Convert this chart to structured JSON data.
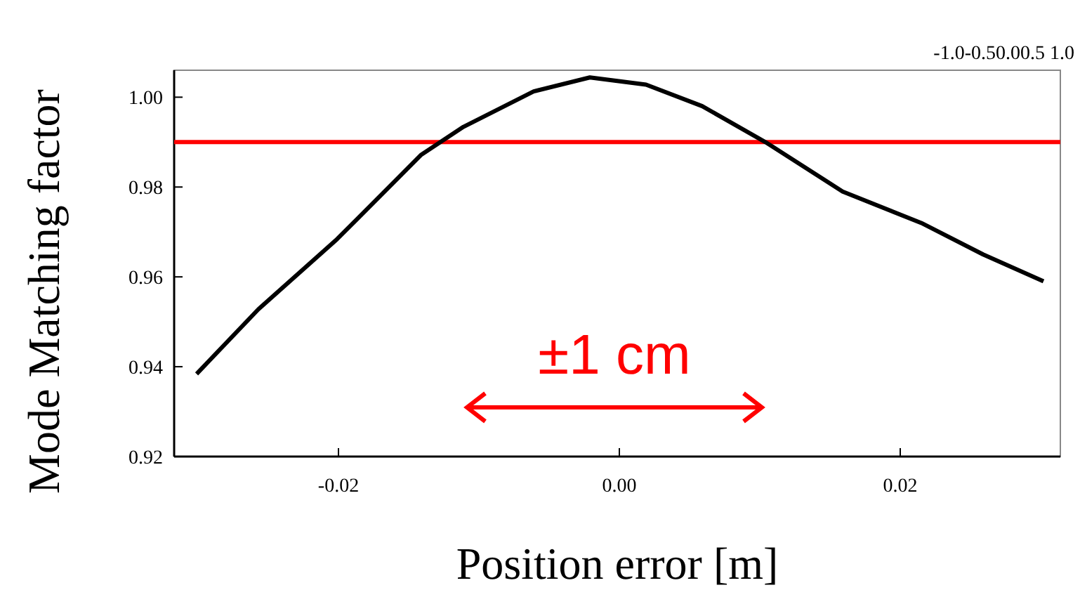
{
  "chart_data": {
    "type": "line",
    "xlabel": "Position error [m]",
    "ylabel": "Mode Matching factor",
    "x": [
      -0.0301,
      -0.0257,
      -0.0201,
      -0.0141,
      -0.0111,
      -0.0061,
      -0.0021,
      0.0019,
      0.0059,
      0.0104,
      0.0159,
      0.0215,
      0.0259,
      0.0302
    ],
    "series": [
      {
        "color": "#000000",
        "values": [
          0.9384,
          0.9528,
          0.9684,
          0.9872,
          0.9934,
          1.0013,
          1.0044,
          1.0028,
          0.998,
          0.99,
          0.979,
          0.972,
          0.965,
          0.959
        ]
      }
    ],
    "xlim": [
      -0.0317,
      0.0314
    ],
    "xticks": [
      {
        "value": -0.02,
        "label": "-0.02"
      },
      {
        "value": 0,
        "label": "0.00"
      },
      {
        "value": 0.02,
        "label": "0.02"
      }
    ],
    "ylim": [
      0.92,
      1.006
    ],
    "yticks": [
      {
        "value": 0.92,
        "label": "0.92"
      },
      {
        "value": 0.94,
        "label": "0.94"
      },
      {
        "value": 0.96,
        "label": "0.96"
      },
      {
        "value": 0.98,
        "label": "0.98"
      },
      {
        "value": 1,
        "label": "1.00"
      }
    ],
    "ref_lines": [
      {
        "axis": "y",
        "value": 0.99,
        "color": "#ff0000"
      }
    ],
    "annotations": [
      "±1 cm",
      "-1.0-0.50.00.5 1.0"
    ],
    "grid": false,
    "marker": "none",
    "line_style": "solid"
  }
}
